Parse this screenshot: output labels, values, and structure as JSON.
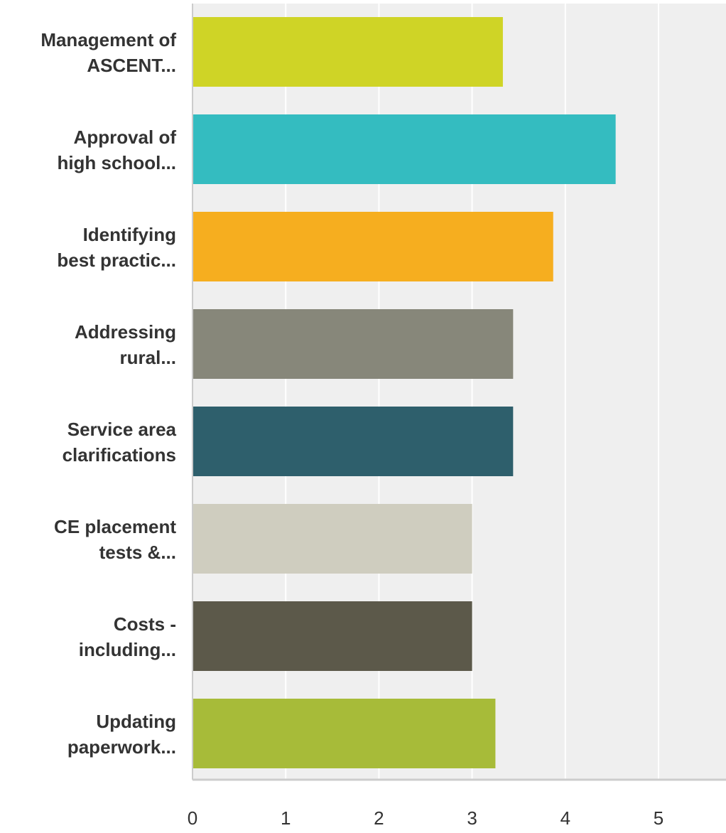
{
  "chart_data": {
    "type": "bar",
    "orientation": "horizontal",
    "categories": [
      "Management of ASCENT...",
      "Approval of high school...",
      "Identifying best practic...",
      "Addressing rural...",
      "Service area clarifications",
      "CE placement tests &...",
      "Costs - including...",
      "Updating paperwork..."
    ],
    "category_lines": [
      [
        "Management of",
        "ASCENT..."
      ],
      [
        "Approval of",
        "high school..."
      ],
      [
        "Identifying",
        "best practic..."
      ],
      [
        "Addressing",
        "rural..."
      ],
      [
        "Service area",
        "clarifications"
      ],
      [
        "CE placement",
        "tests &..."
      ],
      [
        "Costs -",
        "including..."
      ],
      [
        "Updating",
        "paperwork..."
      ]
    ],
    "values": [
      3.33,
      4.54,
      3.87,
      3.44,
      3.44,
      3.0,
      3.0,
      3.25
    ],
    "colors": [
      "#cfd426",
      "#34bcc0",
      "#f6ae1f",
      "#87877a",
      "#2e5f6c",
      "#cfcdbf",
      "#5c594a",
      "#a7bb39"
    ],
    "xlim": [
      0,
      5.6
    ],
    "x_ticks": [
      0,
      1,
      2,
      3,
      4,
      5
    ],
    "grid": true,
    "plot_background": "#efefef",
    "title": "",
    "xlabel": "",
    "ylabel": ""
  }
}
